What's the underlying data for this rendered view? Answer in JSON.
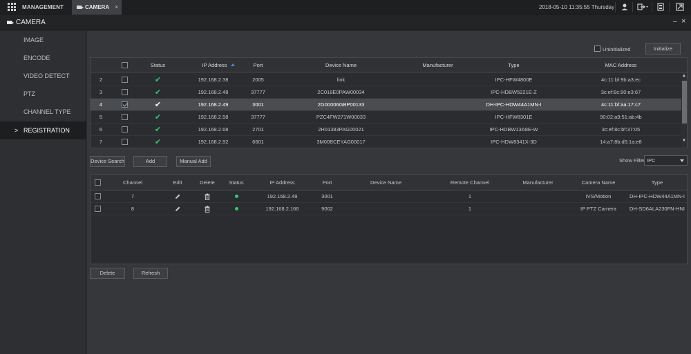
{
  "topbar": {
    "management_label": "MANAGEMENT",
    "tab_label": "CAMERA",
    "tab_close": "×",
    "datetime": "2018-05-10 11:35:55 Thursday"
  },
  "titlebar": {
    "title": "CAMERA",
    "minimize": "–",
    "close": "×"
  },
  "sidebar": {
    "items": [
      {
        "label": "IMAGE"
      },
      {
        "label": "ENCODE"
      },
      {
        "label": "VIDEO DETECT"
      },
      {
        "label": "PTZ"
      },
      {
        "label": "CHANNEL TYPE"
      },
      {
        "label": "REGISTRATION",
        "active": true,
        "arrow": ">"
      }
    ]
  },
  "top_controls": {
    "uninitialized_label": "Uninitialized",
    "initialize_label": "Initialize"
  },
  "device_table": {
    "headers": {
      "status": "Status",
      "ip": "IP Address",
      "port": "Port",
      "device_name": "Device Name",
      "manufacturer": "Manufacturer",
      "type": "Type",
      "mac": "MAC Address"
    },
    "rows": [
      {
        "num": "2",
        "status": "✔",
        "ip": "192.168.2.38",
        "port": "2005",
        "device_name": "link",
        "manufacturer": "",
        "type": "IPC-HFW4800E",
        "mac": "4c:11:bf:9b:a3:ec",
        "checked": false
      },
      {
        "num": "3",
        "status": "✔",
        "ip": "192.168.2.48",
        "port": "37777",
        "device_name": "2C018E0PAW00034",
        "manufacturer": "",
        "type": "IPC-HDBW5221E-Z",
        "mac": "3c:ef:8c:90:e3:67",
        "checked": false
      },
      {
        "num": "4",
        "status": "✔",
        "ip": "192.168.2.49",
        "port": "3001",
        "device_name": "2G00006GBP00133",
        "manufacturer": "",
        "type": "DH-IPC-HDW44A1MN-I",
        "mac": "4c:11:bf:aa:17:c7",
        "checked": true,
        "selected": true
      },
      {
        "num": "5",
        "status": "✔",
        "ip": "192.168.2.58",
        "port": "37777",
        "device_name": "PZC4FW271W00033",
        "manufacturer": "",
        "type": "IPC-HFW8301E",
        "mac": "90:02:a9:51:ab:4b",
        "checked": false
      },
      {
        "num": "6",
        "status": "✔",
        "ip": "192.168.2.68",
        "port": "2701",
        "device_name": "2H01383PAG00021",
        "manufacturer": "",
        "type": "IPC-HDBW13A8E-W",
        "mac": "3c:ef:8c:bf:37:05",
        "checked": false
      },
      {
        "num": "7",
        "status": "✔",
        "ip": "192.168.2.92",
        "port": "6601",
        "device_name": "3M00BCEYAG00017",
        "manufacturer": "",
        "type": "IPC-HDW8341X-3D",
        "mac": "14:a7:8b:d5:1a:e8",
        "checked": false
      }
    ]
  },
  "actions": {
    "device_search": "Device Search",
    "add": "Add",
    "manual_add": "Manual Add",
    "show_filter_label": "Show Filter",
    "show_filter_value": "IPC",
    "delete": "Delete",
    "refresh": "Refresh"
  },
  "added_table": {
    "headers": {
      "channel": "Channel",
      "edit": "Edit",
      "delete": "Delete",
      "status": "Status",
      "ip": "IP Address",
      "port": "Port",
      "device_name": "Device Name",
      "remote_channel": "Remote Channel",
      "manufacturer": "Manufacturer",
      "camera_name": "Camera Name",
      "type": "Type"
    },
    "rows": [
      {
        "channel": "7",
        "ip": "192.168.2.49",
        "port": "3001",
        "device_name": "",
        "remote_channel": "1",
        "manufacturer": "",
        "camera_name": "IVS/Motion",
        "type": "DH-IPC-HDW44A1MN-I"
      },
      {
        "channel": "8",
        "ip": "192.168.2.166",
        "port": "9002",
        "device_name": "",
        "remote_channel": "1",
        "manufacturer": "",
        "camera_name": "IP PTZ Camera",
        "type": "DH-SD6ALA230FN-HNI"
      }
    ]
  },
  "colors": {
    "accent": "#3a8ee0",
    "status_ok": "#2ecc71",
    "selected_row": "#4a4c50"
  }
}
